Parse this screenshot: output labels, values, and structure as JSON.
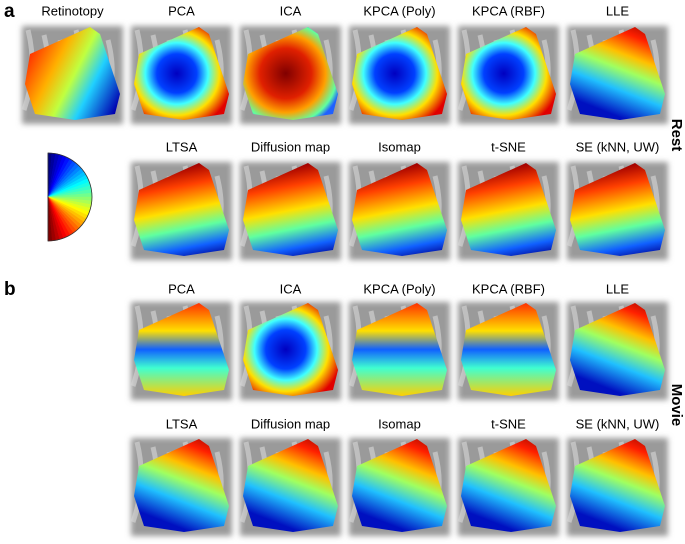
{
  "panels": [
    {
      "label": "a",
      "side_label": "Rest",
      "rows": [
        [
          "Retinotopy",
          "PCA",
          "ICA",
          "KPCA (Poly)",
          "KPCA (RBF)",
          "LLE"
        ],
        [
          "LTSA",
          "Diffusion map",
          "Isomap",
          "t-SNE",
          "SE (kNN, UW)"
        ]
      ]
    },
    {
      "label": "b",
      "side_label": "Movie",
      "rows": [
        [
          "PCA",
          "ICA",
          "KPCA (Poly)",
          "KPCA (RBF)",
          "LLE"
        ],
        [
          "LTSA",
          "Diffusion map",
          "Isomap",
          "t-SNE",
          "SE (kNN, UW)"
        ]
      ]
    }
  ]
}
